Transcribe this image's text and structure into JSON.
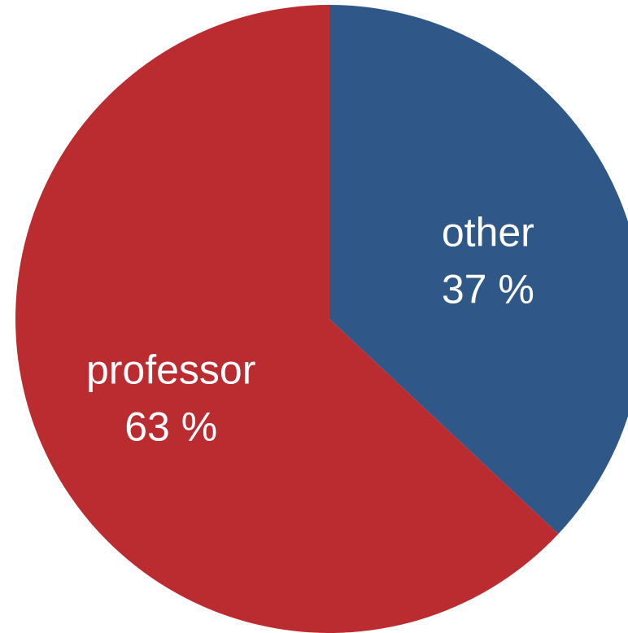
{
  "chart_data": {
    "type": "pie",
    "start": "top",
    "direction": "clockwise",
    "slices": [
      {
        "label": "other",
        "value": 37,
        "value_text": "37 %",
        "color": "#2f5889"
      },
      {
        "label": "professor",
        "value": 63,
        "value_text": "63 %",
        "color": "#bb2c31"
      }
    ]
  }
}
